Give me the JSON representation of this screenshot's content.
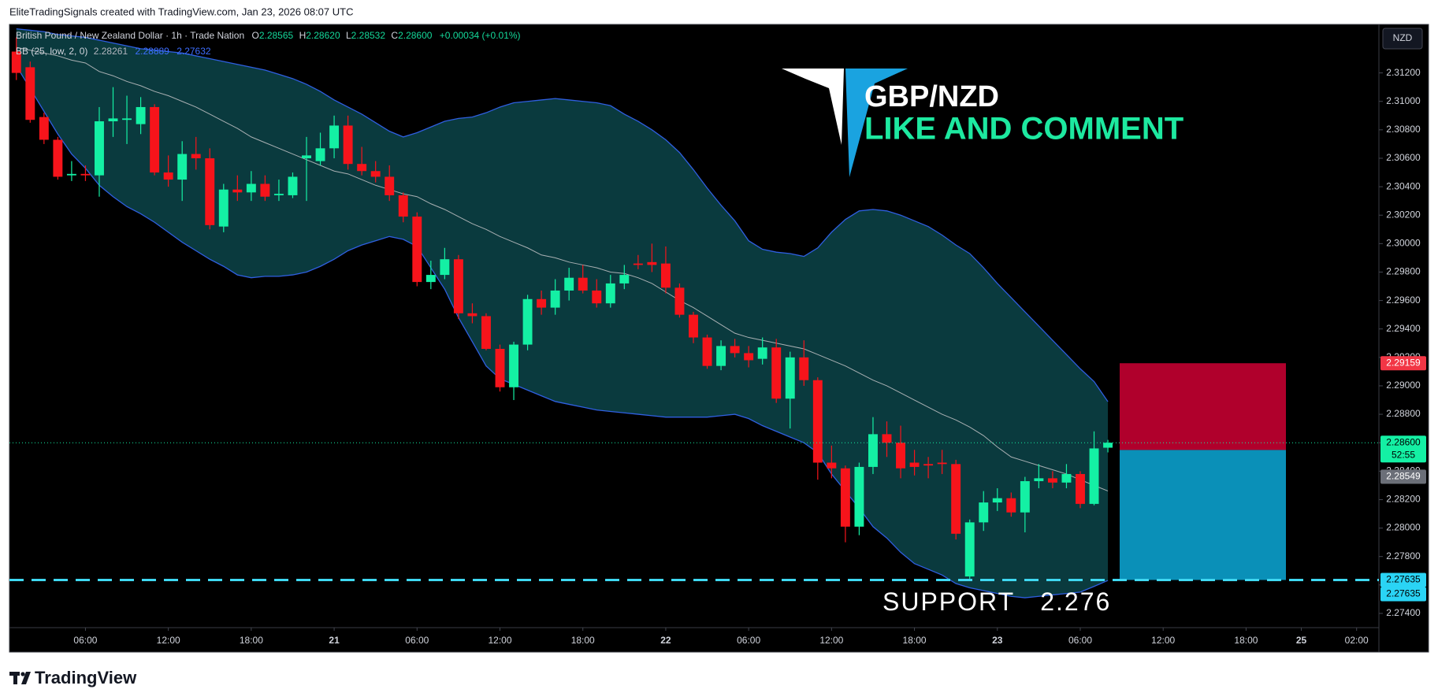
{
  "header": {
    "credit": "EliteTradingSignals created with TradingView.com, Jan 23, 2026 08:07 UTC"
  },
  "chart_data": {
    "type": "candlestick",
    "title": "British Pound / New Zealand Dollar · 1h · Trade Nation",
    "legend": {
      "open_key": "O",
      "open": "2.28565",
      "high_key": "H",
      "high": "2.28620",
      "low_key": "L",
      "low": "2.28532",
      "close_key": "C",
      "close": "2.28600",
      "change": "+0.00034 (+0.01%)"
    },
    "indicator": {
      "name": "BB (25, low, 2, 0)",
      "middle": "2.28261",
      "upper": "2.28889",
      "lower": "2.27632"
    },
    "currency": "NZD",
    "up_color": "#14f0a4",
    "down_color": "#f7141b",
    "candles": [
      [
        2.3135,
        2.3145,
        2.3115,
        2.312
      ],
      [
        2.3124,
        2.3128,
        2.3085,
        2.3087
      ],
      [
        2.3089,
        2.3092,
        2.307,
        2.3073
      ],
      [
        2.3073,
        2.3075,
        2.3045,
        2.3047
      ],
      [
        2.3048,
        2.3058,
        2.3044,
        2.3049
      ],
      [
        2.3049,
        2.3055,
        2.3044,
        2.3048
      ],
      [
        2.3048,
        2.3096,
        2.3033,
        2.3086
      ],
      [
        2.3086,
        2.311,
        2.3075,
        2.3088
      ],
      [
        2.3087,
        2.3104,
        2.307,
        2.3088
      ],
      [
        2.3084,
        2.3103,
        2.3077,
        2.3096
      ],
      [
        2.3096,
        2.3098,
        2.3048,
        2.305
      ],
      [
        2.305,
        2.3062,
        2.304,
        2.3045
      ],
      [
        2.3045,
        2.3072,
        2.303,
        2.3063
      ],
      [
        2.3063,
        2.3075,
        2.3052,
        2.306
      ],
      [
        2.306,
        2.3067,
        2.301,
        2.3013
      ],
      [
        2.3012,
        2.3042,
        2.3008,
        2.3038
      ],
      [
        2.3038,
        2.3048,
        2.303,
        2.3036
      ],
      [
        2.3036,
        2.3051,
        2.303,
        2.3042
      ],
      [
        2.3042,
        2.3048,
        2.303,
        2.3033
      ],
      [
        2.3034,
        2.3045,
        2.303,
        2.3035
      ],
      [
        2.3034,
        2.305,
        2.3032,
        2.3047
      ],
      [
        2.306,
        2.3075,
        2.303,
        2.3062
      ],
      [
        2.3058,
        2.3078,
        2.3055,
        2.3067
      ],
      [
        2.3067,
        2.309,
        2.306,
        2.3083
      ],
      [
        2.3083,
        2.309,
        2.3052,
        2.3056
      ],
      [
        2.3056,
        2.3068,
        2.3048,
        2.3051
      ],
      [
        2.3051,
        2.3058,
        2.3043,
        2.3047
      ],
      [
        2.3047,
        2.3055,
        2.303,
        2.3034
      ],
      [
        2.3034,
        2.3036,
        2.3015,
        2.3019
      ],
      [
        2.3019,
        2.3022,
        2.297,
        2.2973
      ],
      [
        2.2973,
        2.2988,
        2.2968,
        2.2978
      ],
      [
        2.2978,
        2.2997,
        2.2975,
        2.2989
      ],
      [
        2.2989,
        2.2992,
        2.2947,
        2.2951
      ],
      [
        2.2951,
        2.2958,
        2.2944,
        2.2949
      ],
      [
        2.2949,
        2.2951,
        2.2925,
        2.2926
      ],
      [
        2.2926,
        2.2929,
        2.2896,
        2.2899
      ],
      [
        2.2899,
        2.2931,
        2.289,
        2.2929
      ],
      [
        2.2929,
        2.2964,
        2.2925,
        2.2961
      ],
      [
        2.2961,
        2.2967,
        2.295,
        2.2955
      ],
      [
        2.2955,
        2.2975,
        2.295,
        2.2967
      ],
      [
        2.2967,
        2.2983,
        2.296,
        2.2976
      ],
      [
        2.2976,
        2.2985,
        2.2965,
        2.2967
      ],
      [
        2.2967,
        2.2975,
        2.2955,
        2.2958
      ],
      [
        2.2958,
        2.2978,
        2.2955,
        2.2972
      ],
      [
        2.2972,
        2.2985,
        2.2968,
        2.2978
      ],
      [
        2.2986,
        2.2992,
        2.2982,
        2.2985
      ],
      [
        2.2987,
        2.3,
        2.298,
        2.2985
      ],
      [
        2.2986,
        2.2998,
        2.2965,
        2.2969
      ],
      [
        2.2969,
        2.2972,
        2.2948,
        2.295
      ],
      [
        2.295,
        2.2952,
        2.293,
        2.2934
      ],
      [
        2.2934,
        2.2936,
        2.2912,
        2.2914
      ],
      [
        2.2914,
        2.2932,
        2.2911,
        2.2928
      ],
      [
        2.2928,
        2.2933,
        2.292,
        2.2923
      ],
      [
        2.2923,
        2.2928,
        2.2913,
        2.2918
      ],
      [
        2.2919,
        2.2934,
        2.2915,
        2.2927
      ],
      [
        2.2927,
        2.2933,
        2.2888,
        2.2891
      ],
      [
        2.2891,
        2.2924,
        2.287,
        2.292
      ],
      [
        2.292,
        2.2932,
        2.29,
        2.2904
      ],
      [
        2.2904,
        2.2906,
        2.2834,
        2.2846
      ],
      [
        2.2846,
        2.2858,
        2.2835,
        2.2842
      ],
      [
        2.2842,
        2.2844,
        2.279,
        2.2801
      ],
      [
        2.2801,
        2.2846,
        2.2795,
        2.2843
      ],
      [
        2.2843,
        2.2878,
        2.2838,
        2.2866
      ],
      [
        2.2866,
        2.2875,
        2.285,
        2.286
      ],
      [
        2.286,
        2.2872,
        2.2835,
        2.2842
      ],
      [
        2.2846,
        2.2855,
        2.2837,
        2.2843
      ],
      [
        2.2845,
        2.285,
        2.2835,
        2.2844
      ],
      [
        2.2846,
        2.2855,
        2.2838,
        2.2845
      ],
      [
        2.2845,
        2.2848,
        2.2792,
        2.2796
      ],
      [
        2.2766,
        2.2806,
        2.2764,
        2.2804
      ],
      [
        2.2804,
        2.2826,
        2.2798,
        2.2818
      ],
      [
        2.2818,
        2.2828,
        2.2812,
        2.2821
      ],
      [
        2.2821,
        2.2825,
        2.2808,
        2.2811
      ],
      [
        2.2811,
        2.2836,
        2.2797,
        2.2833
      ],
      [
        2.2833,
        2.2845,
        2.2828,
        2.2835
      ],
      [
        2.2835,
        2.284,
        2.2828,
        2.2832
      ],
      [
        2.2832,
        2.2845,
        2.2828,
        2.2838
      ],
      [
        2.2838,
        2.284,
        2.2814,
        2.2817
      ],
      [
        2.2817,
        2.2868,
        2.2816,
        2.2856
      ],
      [
        2.28565,
        2.2862,
        2.28532,
        2.286
      ]
    ],
    "bands": {
      "fill": "#0a3a3e",
      "line_color": "#2f5fe0",
      "middle_color": "#a9b0b3",
      "upper": [
        2.3151,
        2.315,
        2.3149,
        2.3147,
        2.3146,
        2.3145,
        2.3143,
        2.3141,
        2.3139,
        2.3137,
        2.3136,
        2.3135,
        2.3134,
        2.3132,
        2.313,
        2.3128,
        2.3126,
        2.3124,
        2.3122,
        2.3119,
        2.3116,
        2.3112,
        2.3107,
        2.3101,
        2.3096,
        2.3091,
        2.3085,
        2.3079,
        2.3075,
        2.3078,
        2.3082,
        2.3086,
        2.3088,
        2.3089,
        2.3092,
        2.3096,
        2.3099,
        2.31,
        2.3101,
        2.3102,
        2.3101,
        2.31,
        2.3099,
        2.3097,
        2.3091,
        2.3086,
        2.308,
        2.3073,
        2.3064,
        2.3052,
        2.3039,
        2.3027,
        2.3016,
        2.3002,
        2.2996,
        2.2994,
        2.2993,
        2.2991,
        2.2997,
        2.3008,
        2.3017,
        2.3023,
        2.3024,
        2.3023,
        2.302,
        2.3016,
        2.3012,
        2.3006,
        2.2999,
        2.2993,
        2.2983,
        2.2972,
        2.2962,
        2.2952,
        2.2942,
        2.2932,
        2.2922,
        2.2912,
        2.2903,
        2.28889
      ],
      "middle": [
        2.3138,
        2.3136,
        2.3134,
        2.3132,
        2.3129,
        2.3127,
        2.3121,
        2.3118,
        2.3114,
        2.3111,
        2.3107,
        2.3104,
        2.31,
        2.3096,
        2.3091,
        2.3086,
        2.3081,
        2.3075,
        2.3071,
        2.3067,
        2.3063,
        2.3059,
        2.3055,
        2.3051,
        2.3049,
        2.3045,
        2.3041,
        2.3038,
        2.3035,
        2.3033,
        2.3028,
        2.3024,
        2.3019,
        2.3014,
        2.301,
        2.3005,
        2.3001,
        2.2997,
        2.2992,
        2.299,
        2.2987,
        2.2985,
        2.2983,
        2.298,
        2.2979,
        2.2976,
        2.2972,
        2.2966,
        2.296,
        2.2955,
        2.2949,
        2.2943,
        2.2937,
        2.2934,
        2.2932,
        2.293,
        2.2928,
        2.2926,
        2.2922,
        2.2918,
        2.2914,
        2.2909,
        2.2904,
        2.29,
        2.2895,
        2.289,
        2.2885,
        2.288,
        2.2876,
        2.2871,
        2.2865,
        2.2857,
        2.285,
        2.2847,
        2.2844,
        2.2841,
        2.2838,
        2.2834,
        2.283,
        2.28261
      ],
      "lower": [
        2.3125,
        2.3109,
        2.3093,
        2.3077,
        2.3063,
        2.3053,
        2.3041,
        2.3033,
        2.3026,
        2.3021,
        2.3015,
        2.3008,
        2.3001,
        2.2995,
        2.2989,
        2.2984,
        2.2978,
        2.2976,
        2.2977,
        2.2977,
        2.2978,
        2.298,
        2.2984,
        2.2989,
        2.2995,
        2.2999,
        2.3002,
        2.3005,
        2.3003,
        2.2998,
        2.2983,
        2.2968,
        2.2948,
        2.2931,
        2.2914,
        2.2905,
        2.2901,
        2.2897,
        2.2893,
        2.2889,
        2.2887,
        2.2885,
        2.2883,
        2.2882,
        2.2881,
        2.288,
        2.2879,
        2.2878,
        2.2878,
        2.2878,
        2.2878,
        2.2879,
        2.288,
        2.2877,
        2.2872,
        2.2868,
        2.2864,
        2.286,
        2.2853,
        2.2838,
        2.2826,
        2.2814,
        2.2801,
        2.2793,
        2.2783,
        2.2775,
        2.2771,
        2.2767,
        2.2761,
        2.2758,
        2.2756,
        2.2754,
        2.2752,
        2.2751,
        2.2752,
        2.2753,
        2.2754,
        2.2755,
        2.2759,
        2.27632
      ]
    },
    "ylim": [
      2.273,
      2.3153
    ],
    "yticks": [
      {
        "value": 2.274,
        "label": "2.27400"
      },
      {
        "value": 2.276,
        "label": "2.27600"
      },
      {
        "value": 2.278,
        "label": "2.27800"
      },
      {
        "value": 2.28,
        "label": "2.28000"
      },
      {
        "value": 2.282,
        "label": "2.28200"
      },
      {
        "value": 2.284,
        "label": "2.28400"
      },
      {
        "value": 2.286,
        "label": "2.28600"
      },
      {
        "value": 2.288,
        "label": "2.28800"
      },
      {
        "value": 2.29,
        "label": "2.29000"
      },
      {
        "value": 2.292,
        "label": "2.29200"
      },
      {
        "value": 2.294,
        "label": "2.29400"
      },
      {
        "value": 2.296,
        "label": "2.29600"
      },
      {
        "value": 2.298,
        "label": "2.29800"
      },
      {
        "value": 2.3,
        "label": "2.30000"
      },
      {
        "value": 2.302,
        "label": "2.30200"
      },
      {
        "value": 2.304,
        "label": "2.30400"
      },
      {
        "value": 2.306,
        "label": "2.30600"
      },
      {
        "value": 2.308,
        "label": "2.30800"
      },
      {
        "value": 2.31,
        "label": "2.31000"
      },
      {
        "value": 2.312,
        "label": "2.31200"
      }
    ],
    "xlim": [
      -0.5,
      98.5
    ],
    "xticks": [
      {
        "value": 5,
        "label": "06:00"
      },
      {
        "value": 11,
        "label": "12:00"
      },
      {
        "value": 17,
        "label": "18:00"
      },
      {
        "value": 23,
        "label": "21"
      },
      {
        "value": 29,
        "label": "06:00"
      },
      {
        "value": 35,
        "label": "12:00"
      },
      {
        "value": 41,
        "label": "18:00"
      },
      {
        "value": 47,
        "label": "22"
      },
      {
        "value": 53,
        "label": "06:00"
      },
      {
        "value": 59,
        "label": "12:00"
      },
      {
        "value": 65,
        "label": "18:00"
      },
      {
        "value": 71,
        "label": "23"
      },
      {
        "value": 77,
        "label": "06:00"
      },
      {
        "value": 83,
        "label": "12:00"
      },
      {
        "value": 89,
        "label": "18:00"
      },
      {
        "value": 93,
        "label": "25"
      },
      {
        "value": 97,
        "label": "02:00"
      }
    ],
    "last_price": 2.286,
    "last_price_color": "#14f0a4",
    "countdown": "52:55",
    "price_tags": [
      {
        "value": 2.29159,
        "label": "2.29159",
        "color": "#f23645",
        "text_color": "#ffffff"
      },
      {
        "value": 2.286,
        "label": "2.28600",
        "color": "#14f0a4",
        "text_color": "#000000"
      },
      {
        "value": 2.28549,
        "label": "2.28549",
        "color": "#6b6f78",
        "text_color": "#ffffff"
      },
      {
        "value": 2.27635,
        "label": "2.27635",
        "color": "#2ad4f5",
        "text_color": "#000000"
      },
      {
        "value": 2.27635,
        "label": "2.27635",
        "color": "#2ad4f5",
        "text_color": "#000000"
      }
    ],
    "position": {
      "stop": 2.29159,
      "entry": 2.28549,
      "target": 2.27635,
      "stop_color": "#b0002c",
      "target_color": "#0a90b8"
    },
    "support": {
      "value": 2.27635,
      "color": "#3fd8f2",
      "label": "SUPPORT   2.276"
    }
  },
  "overlay": {
    "pair": "GBP/NZD",
    "call": "LIKE AND COMMENT"
  },
  "footer": {
    "brand": "TradingView"
  }
}
